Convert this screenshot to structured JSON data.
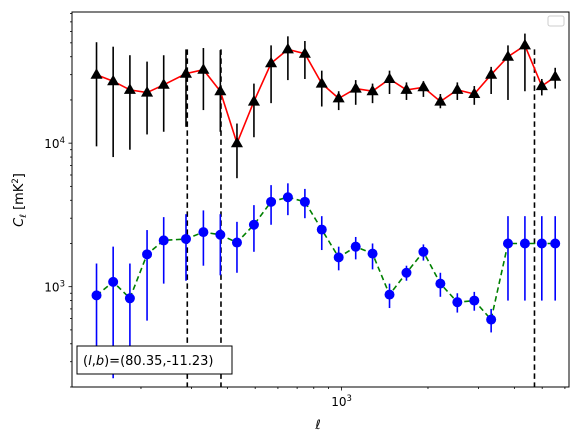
{
  "chart_data": {
    "type": "line",
    "title": "",
    "xlabel": "ℓ",
    "ylabel": "C_ℓ  [mK²]",
    "x_scale": "log",
    "y_scale": "log",
    "xlim": [
      115,
      6200
    ],
    "ylim": [
      200,
      82000
    ],
    "x_major_ticks": [
      {
        "value": 1000,
        "base": "10",
        "exp": "3"
      }
    ],
    "y_major_ticks": [
      {
        "value": 1000,
        "base": "10",
        "exp": "3"
      },
      {
        "value": 10000,
        "base": "10",
        "exp": "4"
      }
    ],
    "grid": false,
    "legend": "top-right (empty box)",
    "annotation": "(l,b)=(80.35,-11.23)",
    "vlines": [
      290,
      380,
      4700
    ],
    "series": [
      {
        "marker": "triangle",
        "color": "#ff0000",
        "marker_color": "#000000",
        "errorbar_color": "#000000",
        "linestyle": "solid",
        "x": [
          140,
          160,
          183,
          210,
          240,
          287,
          330,
          378,
          432,
          495,
          568,
          650,
          745,
          853,
          977,
          1120,
          1282,
          1469,
          1683,
          1928,
          2209,
          2531,
          2900,
          3320,
          3800,
          4353,
          4985,
          5550
        ],
        "y": [
          30000,
          27000,
          23500,
          22500,
          25500,
          30500,
          32500,
          23000,
          10000,
          19500,
          36000,
          45000,
          42000,
          26000,
          20500,
          24000,
          23000,
          28000,
          23500,
          24500,
          19500,
          23500,
          22000,
          30000,
          40000,
          48000,
          25000,
          29000
        ],
        "y_err_low": [
          20500,
          19000,
          14500,
          11000,
          13500,
          17500,
          15500,
          11000,
          4300,
          8500,
          17000,
          17500,
          14000,
          8000,
          3500,
          5500,
          4000,
          6000,
          3500,
          3500,
          2000,
          3500,
          3500,
          8000,
          20000,
          25000,
          3500,
          5000
        ],
        "y_err_high": [
          20500,
          20000,
          17500,
          14500,
          15500,
          14500,
          13500,
          21500,
          3700,
          6500,
          12000,
          10500,
          9500,
          6000,
          2500,
          3500,
          3000,
          4000,
          3000,
          2500,
          2500,
          3000,
          3000,
          4000,
          8000,
          10000,
          3000,
          4500
        ]
      },
      {
        "marker": "circle",
        "color": "#008000",
        "marker_color": "#0000ff",
        "errorbar_color": "#0000ff",
        "linestyle": "dashed",
        "x": [
          140,
          160,
          183,
          210,
          240,
          287,
          330,
          378,
          432,
          495,
          568,
          650,
          745,
          853,
          977,
          1120,
          1282,
          1469,
          1683,
          1928,
          2209,
          2531,
          2900,
          3320,
          3800,
          4353,
          4985,
          5550
        ],
        "y": [
          870,
          1080,
          830,
          1680,
          2100,
          2150,
          2400,
          2300,
          2030,
          2700,
          3900,
          4200,
          3900,
          2500,
          1600,
          1900,
          1700,
          880,
          1250,
          1750,
          1050,
          780,
          800,
          590,
          2000,
          2000,
          2000,
          2000
        ],
        "y_err_low": [
          600,
          850,
          570,
          1100,
          1050,
          1050,
          1000,
          1100,
          780,
          950,
          1200,
          1050,
          900,
          700,
          300,
          350,
          380,
          170,
          150,
          230,
          200,
          120,
          120,
          110,
          1200,
          1200,
          1200,
          1200
        ],
        "y_err_high": [
          580,
          820,
          620,
          800,
          950,
          1050,
          1000,
          900,
          800,
          1000,
          1200,
          1050,
          900,
          600,
          300,
          320,
          300,
          170,
          150,
          220,
          200,
          120,
          120,
          110,
          1100,
          1100,
          1100,
          1100
        ]
      }
    ]
  }
}
